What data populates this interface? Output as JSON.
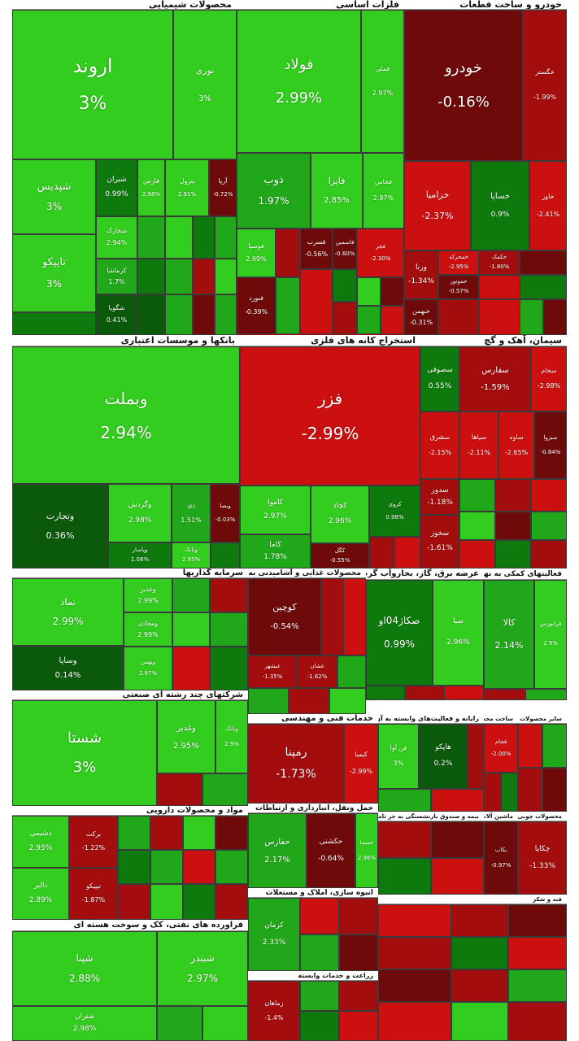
{
  "colors": {
    "up_strong": "#32cd1e",
    "up_mid": "#21a81a",
    "up_dark": "#0e7a0e",
    "flat_dark": "#0b5a0b",
    "down_dark": "#6e0a0a",
    "down_mid": "#a30d0d",
    "down_strong": "#cc1010",
    "header_bg": "#ffffff",
    "page_bg": "#ffffff"
  },
  "sectors": [
    {
      "title": "محصولات شیمیایی",
      "tiles": [
        {
          "name": "اروند",
          "pct": "3%"
        },
        {
          "name": "نوری",
          "pct": "3%"
        },
        {
          "name": "شپدیس",
          "pct": "3%"
        },
        {
          "name": "تاپیکو",
          "pct": "3%"
        },
        {
          "name": "شیران",
          "pct": "0.99%"
        },
        {
          "name": "شخارک",
          "pct": "2.94%"
        },
        {
          "name": "کرماشا",
          "pct": "1.7%"
        },
        {
          "name": "شگویا",
          "pct": "0.41%"
        },
        {
          "name": "فارس",
          "pct": "2.98%"
        },
        {
          "name": "آریا",
          "pct": "-0.72%"
        },
        {
          "name": "پترول",
          "pct": "2.91%"
        }
      ]
    },
    {
      "title": "فلزات اساسی",
      "tiles": [
        {
          "name": "فولاد",
          "pct": "2.99%"
        },
        {
          "name": "فملی",
          "pct": "2.97%"
        },
        {
          "name": "ذوب",
          "pct": "1.97%"
        },
        {
          "name": "فایرا",
          "pct": "2.85%"
        },
        {
          "name": "فخاس",
          "pct": "2.97%"
        },
        {
          "name": "فوسپا",
          "pct": "2.99%"
        },
        {
          "name": "فسرب",
          "pct": "-0.56%"
        },
        {
          "name": "فنورد",
          "pct": "-0.39%"
        },
        {
          "name": "فاسمین",
          "pct": "-0.60%"
        },
        {
          "name": "فجر",
          "pct": "-2.30%"
        }
      ]
    },
    {
      "title": "خودرو و ساخت قطعات",
      "tiles": [
        {
          "name": "خودرو",
          "pct": "-0.16%"
        },
        {
          "name": "خگستر",
          "pct": "-1.99%"
        },
        {
          "name": "خزامیا",
          "pct": "-2.37%"
        },
        {
          "name": "خساپا",
          "pct": "0.9%"
        },
        {
          "name": "خاور",
          "pct": "-2.41%"
        },
        {
          "name": "ورنا",
          "pct": "-1.34%"
        },
        {
          "name": "خبهمن",
          "pct": "-0.31%"
        },
        {
          "name": "خمحرکه",
          "pct": "-2.95%"
        },
        {
          "name": "خموتور",
          "pct": "-0.57%"
        },
        {
          "name": "خکمک",
          "pct": "-1.80%"
        }
      ]
    },
    {
      "title": "بانکها و موسسات اعتباری",
      "tiles": [
        {
          "name": "وبملت",
          "pct": "2.94%"
        },
        {
          "name": "وتجارت",
          "pct": "0.36%"
        },
        {
          "name": "وگردش",
          "pct": "2.98%"
        },
        {
          "name": "دی",
          "pct": "1.51%"
        },
        {
          "name": "وبصا",
          "pct": "-0.03%"
        },
        {
          "name": "وپاسار",
          "pct": "1.08%"
        },
        {
          "name": "وبانک",
          "pct": "2.95%"
        }
      ]
    },
    {
      "title": "استخراج کانه های فلزی",
      "tiles": [
        {
          "name": "فزر",
          "pct": "-2.99%"
        },
        {
          "name": "کچاد",
          "pct": "2.96%"
        },
        {
          "name": "کاموا",
          "pct": "2.97%"
        },
        {
          "name": "کاما",
          "pct": "1.78%"
        },
        {
          "name": "کگل",
          "pct": "-0.55%"
        },
        {
          "name": "کروی",
          "pct": "0.98%"
        }
      ]
    },
    {
      "title": "سیمان، آهک و گچ",
      "tiles": [
        {
          "name": "سصوفی",
          "pct": "0.55%"
        },
        {
          "name": "سفارس",
          "pct": "-1.59%"
        },
        {
          "name": "سخام",
          "pct": "-2.98%"
        },
        {
          "name": "سشرق",
          "pct": "-2.15%"
        },
        {
          "name": "سپاها",
          "pct": "-2.11%"
        },
        {
          "name": "ساوه",
          "pct": "-2.65%"
        },
        {
          "name": "سبزوا",
          "pct": "-0.84%"
        },
        {
          "name": "سدور",
          "pct": "-1.18%"
        },
        {
          "name": "سخوز",
          "pct": "-1.61%"
        }
      ]
    },
    {
      "title": "سرمایه گذاریها",
      "tiles": [
        {
          "name": "نماد",
          "pct": "2.99%"
        },
        {
          "name": "وساپا",
          "pct": "0.14%"
        },
        {
          "name": "وغدیر",
          "pct": "2.99%"
        },
        {
          "name": "ومعادن",
          "pct": "2.99%"
        },
        {
          "name": "وبهمن",
          "pct": "2.97%"
        }
      ]
    },
    {
      "title": "محصولات غذایی و آشامیدنی به جز قند و شکر",
      "tiles": [
        {
          "name": "کوچین",
          "pct": "-0.54%"
        },
        {
          "name": "غبشهر",
          "pct": "-1.35%"
        },
        {
          "name": "غشان",
          "pct": "-1.62%"
        }
      ]
    },
    {
      "title": "عرضه برق، گاز، بخاروآب گرم",
      "tiles": [
        {
          "name": "صکاژ04او",
          "pct": "0.99%"
        },
        {
          "name": "صبا",
          "pct": "2.96%"
        }
      ]
    },
    {
      "title": "فعالیتهای کمکی به نهادهای مالی واسط",
      "tiles": [
        {
          "name": "کالا",
          "pct": "2.14%"
        },
        {
          "name": "فرابورس",
          "pct": "2.9%"
        }
      ]
    },
    {
      "title": "شرکتهای چند رشته ای صنعتی",
      "tiles": [
        {
          "name": "شستا",
          "pct": "3%"
        },
        {
          "name": "وغدیر",
          "pct": "2.95%"
        },
        {
          "name": "وبانک",
          "pct": "2.9%"
        }
      ]
    },
    {
      "title": "خدمات فنی و مهندسی",
      "tiles": [
        {
          "name": "رمپنا",
          "pct": "-1.73%"
        },
        {
          "name": "کیمیا",
          "pct": "-2.99%"
        }
      ]
    },
    {
      "title": "رایانه و فعالیت‌های وابسته به آن",
      "tiles": [
        {
          "name": "فن آوا",
          "pct": "3%"
        },
        {
          "name": "هاپکو",
          "pct": "0.2%"
        }
      ]
    },
    {
      "title": "ساخت محصولات فلزی",
      "tiles": [
        {
          "name": "فجام",
          "pct": "-2.00%"
        }
      ]
    },
    {
      "title": "سایر محصولات کانی غیرفلزی",
      "tiles": []
    },
    {
      "title": "مواد و محصولات دارویی",
      "tiles": [
        {
          "name": "دشیمی",
          "pct": "2.95%"
        },
        {
          "name": "دالبر",
          "pct": "2.89%"
        },
        {
          "name": "برکت",
          "pct": "-1.22%"
        },
        {
          "name": "تیپیکو",
          "pct": "-1.87%"
        }
      ]
    },
    {
      "title": "حمل ونقل، انبارداری و ارتباطات",
      "tiles": [
        {
          "name": "حفارس",
          "pct": "2.17%"
        },
        {
          "name": "حکشتی",
          "pct": "-0.64%"
        },
        {
          "name": "حسینا",
          "pct": "2.96%"
        }
      ]
    },
    {
      "title": "انبوه سازی، املاک و مستغلات",
      "tiles": [
        {
          "name": "کرمان",
          "pct": "2.33%"
        }
      ]
    },
    {
      "title": "فراورده های نفتی، کک و سوخت هسته ای",
      "tiles": [
        {
          "name": "شپنا",
          "pct": "2.88%"
        },
        {
          "name": "شبندر",
          "pct": "2.97%"
        },
        {
          "name": "شتران",
          "pct": "2.98%"
        }
      ]
    },
    {
      "title": "زراعت و خدمات وابسته",
      "tiles": [
        {
          "name": "زماهان",
          "pct": "-1.4%"
        }
      ]
    },
    {
      "title": "بیمه و صندوق بازنشستگی به جز تامین اجتماعی",
      "tiles": []
    },
    {
      "title": "ماشین آلات و دستگاه‌های برقی",
      "tiles": [
        {
          "name": "بکاب",
          "pct": "-0.97%"
        }
      ]
    },
    {
      "title": "محصولات چوبی",
      "tiles": [
        {
          "name": "چکاپا",
          "pct": "-1.33%"
        }
      ]
    },
    {
      "title": "قند و شکر",
      "tiles": []
    }
  ]
}
